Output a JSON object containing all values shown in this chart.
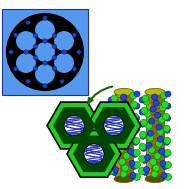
{
  "bg_color": "#ffffff",
  "blue_box_color": "#5599ee",
  "black_color": "#000000",
  "blue_dot_color": "#2244bb",
  "cyl_body_color": "#7a7a00",
  "cyl_highlight_color": "#cccc00",
  "cyl_top_color": "#bbbb00",
  "cyl_shadow_color": "#555500",
  "green_ball_color": "#22dd22",
  "blue_ball_color": "#2244ee",
  "red_wire_color": "#cc2222",
  "hex_bright_green": "#22cc22",
  "hex_mid_green": "#118811",
  "hex_dark_green": "#004400",
  "hex_black": "#000000",
  "coil_blue": "#2233bb",
  "white": "#ffffff",
  "arrow_green": "#226600",
  "figsize": [
    1.88,
    1.89
  ],
  "dpi": 100
}
